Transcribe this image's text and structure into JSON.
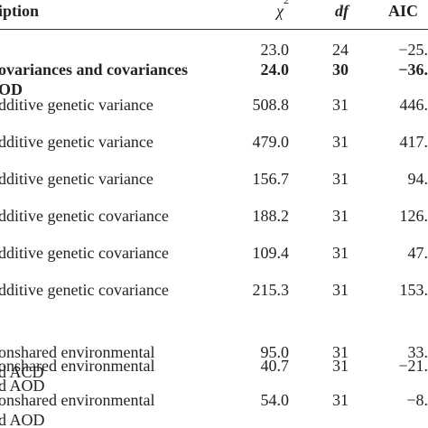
{
  "table": {
    "headers": {
      "description": "iption",
      "chi_symbol": "χ",
      "chi_sup": "2",
      "df": "df",
      "aic": "AIC"
    },
    "rows": [
      {
        "description": [
          ""
        ],
        "chi": "23.0",
        "df": "24",
        "aic": "−25.",
        "bold": false
      },
      {
        "description": [
          "ovariances and covariances",
          "OD"
        ],
        "chi": "24.0",
        "df": "30",
        "aic": "−36.",
        "bold": true
      },
      {
        "description": [
          "dditive genetic variance"
        ],
        "chi": "508.8",
        "df": "31",
        "aic": "446.",
        "bold": false
      },
      {
        "description": [
          "dditive genetic variance"
        ],
        "chi": "479.0",
        "df": "31",
        "aic": "417.",
        "bold": false
      },
      {
        "description": [
          "dditive genetic variance"
        ],
        "chi": "156.7",
        "df": "31",
        "aic": "94.",
        "bold": false
      },
      {
        "description": [
          "dditive genetic covariance"
        ],
        "chi": "188.2",
        "df": "31",
        "aic": "126.",
        "bold": false
      },
      {
        "description": [
          "dditive genetic covariance"
        ],
        "chi": "109.4",
        "df": "31",
        "aic": "47.",
        "bold": false
      },
      {
        "description": [
          "dditive genetic covariance"
        ],
        "chi": "215.3",
        "df": "31",
        "aic": "153.",
        "bold": false
      },
      {
        "description": [
          "onshared environmental",
          "d ACD"
        ],
        "chi": "95.0",
        "df": "31",
        "aic": "33.",
        "bold": false
      },
      {
        "description": [
          "onshared environmental",
          "d AOD"
        ],
        "chi": "40.7",
        "df": "31",
        "aic": "−21.",
        "bold": false
      },
      {
        "description": [
          "onshared environmental",
          "d AOD"
        ],
        "chi": "54.0",
        "df": "31",
        "aic": "−8.",
        "bold": false
      }
    ]
  }
}
